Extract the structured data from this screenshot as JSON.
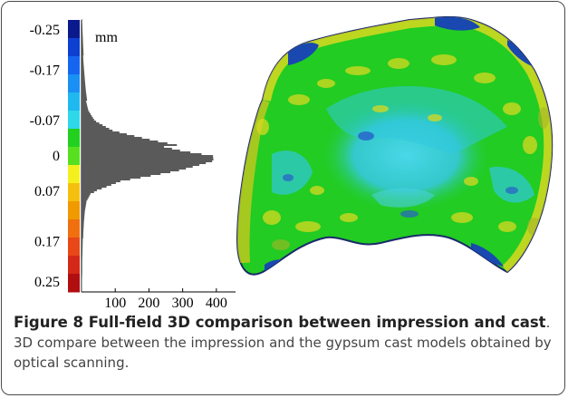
{
  "figure": {
    "unit_label": "mm",
    "colorbar_labels": [
      "-0.25",
      "-0.17",
      "-0.07",
      "0",
      "0.07",
      "0.17",
      "0.25"
    ],
    "colorbar_colors": [
      "#0a1a8c",
      "#0d3fd0",
      "#1565f0",
      "#1a90f5",
      "#20b8f0",
      "#2fd8e8",
      "#22d020",
      "#58e020",
      "#f4f020",
      "#f4c010",
      "#f09a00",
      "#f07010",
      "#e84818",
      "#d42818",
      "#b00e10"
    ],
    "histogram_color": "#5a5a5a",
    "surface_colors": {
      "base": "#22cc22",
      "yellow": "#d8d820",
      "cyan": "#30c8e0",
      "blue": "#1848b0",
      "olive": "#a8b428"
    }
  },
  "chart_data": {
    "type": "histogram",
    "title": "",
    "ylabel": "mm",
    "xlabel": "",
    "x_ticks": [
      "100",
      "200",
      "300",
      "400"
    ],
    "xlim": [
      0,
      430
    ],
    "ylim": [
      -0.27,
      0.27
    ],
    "y_ticks": [
      "-0.25",
      "-0.17",
      "-0.07",
      "0",
      "0.07",
      "0.17",
      "0.25"
    ],
    "bins": [
      {
        "y": -0.27,
        "count": 2
      },
      {
        "y": -0.25,
        "count": 3
      },
      {
        "y": -0.23,
        "count": 4
      },
      {
        "y": -0.21,
        "count": 5
      },
      {
        "y": -0.19,
        "count": 6
      },
      {
        "y": -0.17,
        "count": 8
      },
      {
        "y": -0.15,
        "count": 10
      },
      {
        "y": -0.13,
        "count": 12
      },
      {
        "y": -0.11,
        "count": 15
      },
      {
        "y": -0.09,
        "count": 22
      },
      {
        "y": -0.07,
        "count": 40
      },
      {
        "y": -0.05,
        "count": 90
      },
      {
        "y": -0.03,
        "count": 200
      },
      {
        "y": -0.01,
        "count": 330
      },
      {
        "y": 0.0,
        "count": 420
      },
      {
        "y": 0.01,
        "count": 410
      },
      {
        "y": 0.03,
        "count": 280
      },
      {
        "y": 0.05,
        "count": 110
      },
      {
        "y": 0.07,
        "count": 35
      },
      {
        "y": 0.09,
        "count": 16
      },
      {
        "y": 0.11,
        "count": 10
      },
      {
        "y": 0.13,
        "count": 7
      },
      {
        "y": 0.15,
        "count": 5
      },
      {
        "y": 0.17,
        "count": 4
      },
      {
        "y": 0.19,
        "count": 3
      },
      {
        "y": 0.21,
        "count": 2
      },
      {
        "y": 0.23,
        "count": 2
      },
      {
        "y": 0.25,
        "count": 1
      }
    ]
  },
  "caption": {
    "title": "Figure 8 Full-field 3D comparison between impression and cast",
    "body": ". 3D compare between the impression and the gypsum cast models obtained by optical scanning."
  }
}
